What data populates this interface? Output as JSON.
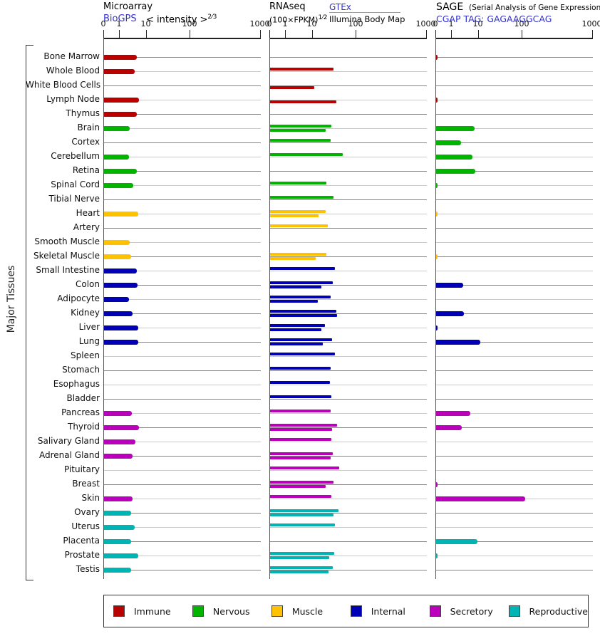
{
  "chart_data": {
    "type": "bar",
    "orientation": "horizontal",
    "y_axis_title": "Major Tissues",
    "axis": {
      "tick_labels": [
        "0",
        "1",
        "10",
        "100",
        "1000"
      ],
      "tick_values": [
        0,
        1,
        10,
        100,
        1000
      ],
      "scale": "compressed-log",
      "xlim": [
        0,
        1000
      ]
    },
    "panels": [
      {
        "id": "microarray",
        "title": "Microarray",
        "link": "BioGPS",
        "formula": "< intensity >",
        "formula_exp": "2⁄3"
      },
      {
        "id": "rnaseq",
        "title": "RNAseq",
        "formula": "(100×FPKM)",
        "formula_exp": "1⁄2",
        "link": "GTEx",
        "sublabel": "Illumina Body Map"
      },
      {
        "id": "sage",
        "title": "SAGE",
        "subtitle": "(Serial Analysis of Gene Expression)",
        "link": "CGAP TAG: GAGAAGGCAG"
      }
    ],
    "category_colors": {
      "Immune": "#bb0000",
      "Nervous": "#00b400",
      "Muscle": "#ffc200",
      "Internal": "#0000b4",
      "Secretory": "#bb00bb",
      "Reproductive": "#00b4b4"
    },
    "tissues": [
      {
        "name": "Bone Marrow",
        "category": "Immune",
        "microarray": 4.3,
        "rnaseq_gtex": null,
        "rnaseq_bodymap": null,
        "sage": 0.1
      },
      {
        "name": "Whole Blood",
        "category": "Immune",
        "microarray": 3.7,
        "rnaseq_gtex": 30,
        "rnaseq_bodymap": null,
        "sage": null
      },
      {
        "name": "White Blood Cells",
        "category": "Immune",
        "microarray": null,
        "rnaseq_gtex": null,
        "rnaseq_bodymap": 11,
        "sage": null
      },
      {
        "name": "Lymph Node",
        "category": "Immune",
        "microarray": 5.1,
        "rnaseq_gtex": null,
        "rnaseq_bodymap": 35,
        "sage": 0.1
      },
      {
        "name": "Thymus",
        "category": "Immune",
        "microarray": 4.3,
        "rnaseq_gtex": null,
        "rnaseq_bodymap": null,
        "sage": null
      },
      {
        "name": "Brain",
        "category": "Nervous",
        "microarray": 2.3,
        "rnaseq_gtex": 27,
        "rnaseq_bodymap": 20,
        "sage": 7
      },
      {
        "name": "Cortex",
        "category": "Nervous",
        "microarray": null,
        "rnaseq_gtex": 26,
        "rnaseq_bodymap": null,
        "sage": 2.2
      },
      {
        "name": "Cerebellum",
        "category": "Nervous",
        "microarray": 2.2,
        "rnaseq_gtex": 49,
        "rnaseq_bodymap": null,
        "sage": 6
      },
      {
        "name": "Retina",
        "category": "Nervous",
        "microarray": 4.3,
        "rnaseq_gtex": null,
        "rnaseq_bodymap": null,
        "sage": 7.4
      },
      {
        "name": "Spinal Cord",
        "category": "Nervous",
        "microarray": 3.2,
        "rnaseq_gtex": 21,
        "rnaseq_bodymap": null,
        "sage": 0.1
      },
      {
        "name": "Tibial Nerve",
        "category": "Nervous",
        "microarray": null,
        "rnaseq_gtex": 30,
        "rnaseq_bodymap": null,
        "sage": null
      },
      {
        "name": "Heart",
        "category": "Muscle",
        "microarray": 4.8,
        "rnaseq_gtex": 20,
        "rnaseq_bodymap": 14,
        "sage": 0.1
      },
      {
        "name": "Artery",
        "category": "Muscle",
        "microarray": null,
        "rnaseq_gtex": 22,
        "rnaseq_bodymap": null,
        "sage": null
      },
      {
        "name": "Smooth Muscle",
        "category": "Muscle",
        "microarray": 2.3,
        "rnaseq_gtex": null,
        "rnaseq_bodymap": null,
        "sage": null
      },
      {
        "name": "Skeletal Muscle",
        "category": "Muscle",
        "microarray": 2.75,
        "rnaseq_gtex": 21,
        "rnaseq_bodymap": 12,
        "sage": 0.1
      },
      {
        "name": "Small Intestine",
        "category": "Internal",
        "microarray": 4.3,
        "rnaseq_gtex": 33,
        "rnaseq_bodymap": null,
        "sage": null
      },
      {
        "name": "Colon",
        "category": "Internal",
        "microarray": 4.6,
        "rnaseq_gtex": 29,
        "rnaseq_bodymap": 16,
        "sage": 2.6
      },
      {
        "name": "Adipocyte",
        "category": "Internal",
        "microarray": 2.2,
        "rnaseq_gtex": 26,
        "rnaseq_bodymap": 13,
        "sage": null
      },
      {
        "name": "Kidney",
        "category": "Internal",
        "microarray": 3.0,
        "rnaseq_gtex": 35,
        "rnaseq_bodymap": 37,
        "sage": 2.8
      },
      {
        "name": "Liver",
        "category": "Internal",
        "microarray": 4.8,
        "rnaseq_gtex": 19,
        "rnaseq_bodymap": 16,
        "sage": 0.1
      },
      {
        "name": "Lung",
        "category": "Internal",
        "microarray": 4.8,
        "rnaseq_gtex": 28,
        "rnaseq_bodymap": 17,
        "sage": 11
      },
      {
        "name": "Spleen",
        "category": "Internal",
        "microarray": null,
        "rnaseq_gtex": 32,
        "rnaseq_bodymap": null,
        "sage": null
      },
      {
        "name": "Stomach",
        "category": "Internal",
        "microarray": null,
        "rnaseq_gtex": 26,
        "rnaseq_bodymap": null,
        "sage": null
      },
      {
        "name": "Esophagus",
        "category": "Internal",
        "microarray": null,
        "rnaseq_gtex": 25,
        "rnaseq_bodymap": null,
        "sage": null
      },
      {
        "name": "Bladder",
        "category": "Internal",
        "microarray": null,
        "rnaseq_gtex": 27,
        "rnaseq_bodymap": null,
        "sage": null
      },
      {
        "name": "Pancreas",
        "category": "Secretory",
        "microarray": 2.8,
        "rnaseq_gtex": 26,
        "rnaseq_bodymap": null,
        "sage": 5
      },
      {
        "name": "Thyroid",
        "category": "Secretory",
        "microarray": 5.1,
        "rnaseq_gtex": 37,
        "rnaseq_bodymap": 28,
        "sage": 2.4
      },
      {
        "name": "Salivary Gland",
        "category": "Secretory",
        "microarray": 3.9,
        "rnaseq_gtex": 27,
        "rnaseq_bodymap": null,
        "sage": null
      },
      {
        "name": "Adrenal Gland",
        "category": "Secretory",
        "microarray": 3.0,
        "rnaseq_gtex": 29,
        "rnaseq_bodymap": 26,
        "sage": null
      },
      {
        "name": "Pituitary",
        "category": "Secretory",
        "microarray": null,
        "rnaseq_gtex": 41,
        "rnaseq_bodymap": null,
        "sage": null
      },
      {
        "name": "Breast",
        "category": "Secretory",
        "microarray": null,
        "rnaseq_gtex": 30,
        "rnaseq_bodymap": 20,
        "sage": 0.1
      },
      {
        "name": "Skin",
        "category": "Secretory",
        "microarray": 3.0,
        "rnaseq_gtex": 27,
        "rnaseq_bodymap": null,
        "sage": 110
      },
      {
        "name": "Ovary",
        "category": "Reproductive",
        "microarray": 2.6,
        "rnaseq_gtex": 39,
        "rnaseq_bodymap": 30,
        "sage": null
      },
      {
        "name": "Uterus",
        "category": "Reproductive",
        "microarray": 3.7,
        "rnaseq_gtex": 32,
        "rnaseq_bodymap": null,
        "sage": null
      },
      {
        "name": "Placenta",
        "category": "Reproductive",
        "microarray": 2.6,
        "rnaseq_gtex": null,
        "rnaseq_bodymap": null,
        "sage": 9
      },
      {
        "name": "Prostate",
        "category": "Reproductive",
        "microarray": 4.8,
        "rnaseq_gtex": 31,
        "rnaseq_bodymap": 24,
        "sage": 0.1
      },
      {
        "name": "Testis",
        "category": "Reproductive",
        "microarray": 2.75,
        "rnaseq_gtex": 29,
        "rnaseq_bodymap": 23,
        "sage": null
      }
    ]
  },
  "legend": {
    "items": [
      {
        "label": "Immune",
        "color": "#bb0000"
      },
      {
        "label": "Nervous",
        "color": "#00b400"
      },
      {
        "label": "Muscle",
        "color": "#ffc200"
      },
      {
        "label": "Internal",
        "color": "#0000b4"
      },
      {
        "label": "Secretory",
        "color": "#bb00bb"
      },
      {
        "label": "Reproductive",
        "color": "#00b4b4"
      }
    ]
  }
}
